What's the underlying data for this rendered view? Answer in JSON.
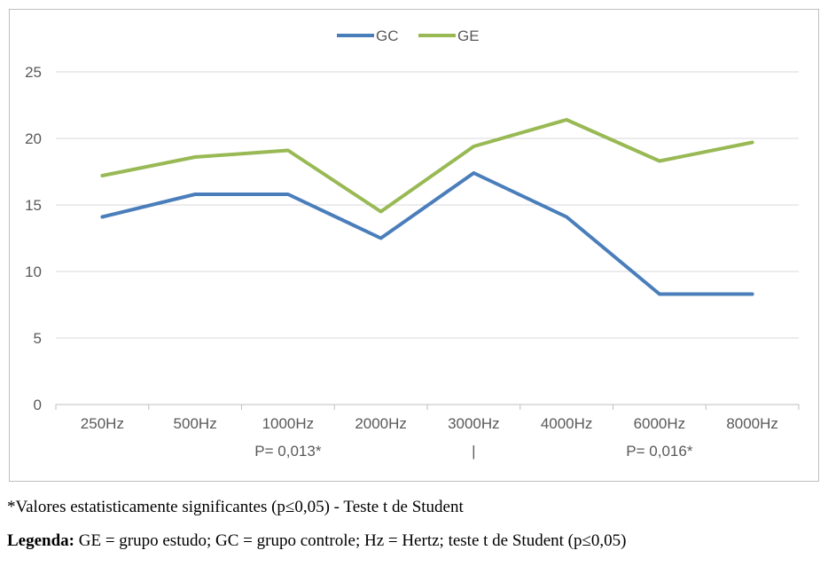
{
  "chart_data": {
    "type": "line",
    "title": "",
    "xlabel": "",
    "ylabel": "",
    "categories": [
      "250Hz",
      "500Hz",
      "1000Hz",
      "2000Hz",
      "3000Hz",
      "4000Hz",
      "6000Hz",
      "8000Hz"
    ],
    "series": [
      {
        "name": "GC",
        "color": "#4a7ebb",
        "values": [
          14.1,
          15.8,
          15.8,
          12.5,
          17.4,
          14.1,
          8.3,
          8.3
        ]
      },
      {
        "name": "GE",
        "color": "#98b954",
        "values": [
          17.2,
          18.6,
          19.1,
          14.5,
          19.4,
          21.4,
          18.3,
          19.7
        ]
      }
    ],
    "ylim": [
      0,
      25
    ],
    "yticks": [
      0,
      5,
      10,
      15,
      20,
      25
    ],
    "grid": true,
    "legend_position": "top-center",
    "annotations": [
      {
        "text": "P= 0,013*",
        "category": "1000Hz"
      },
      {
        "text": "|",
        "category": "3000Hz"
      },
      {
        "text": "P= 0,016*",
        "category": "6000Hz"
      }
    ]
  },
  "notes": {
    "footnote": "*Valores estatisticamente significantes (p≤0,05) - Teste t de Student",
    "legend_label": "Legenda:",
    "legend_text": " GE = grupo estudo; GC = grupo controle; Hz = Hertz; teste t de Student (p≤0,05)"
  }
}
